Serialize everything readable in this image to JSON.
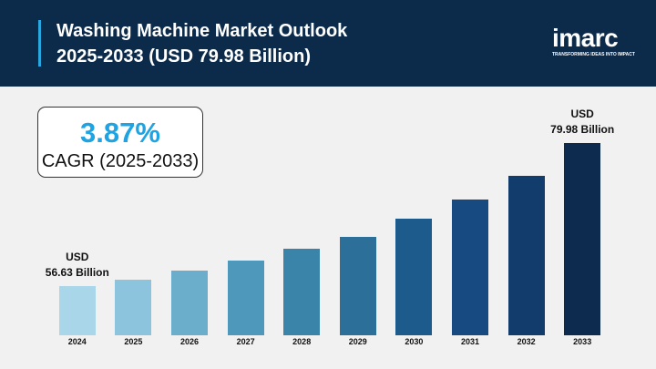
{
  "header": {
    "title": "Washing Machine Market Outlook\n2025-2033 (USD 79.98 Billion)",
    "logo": "imarc",
    "tagline": "TRANSFORMING IDEAS INTO IMPACT"
  },
  "kpi": {
    "value": "3.87%",
    "label": "CAGR (2025-2033)"
  },
  "chart_data": {
    "type": "bar",
    "categories": [
      "2024",
      "2025",
      "2026",
      "2027",
      "2028",
      "2029",
      "2030",
      "2031",
      "2032",
      "2033"
    ],
    "values": [
      56.63,
      57.67,
      59.16,
      60.8,
      62.73,
      64.66,
      67.64,
      70.76,
      74.63,
      79.98
    ],
    "value_labels": [
      "USD\n56.63 Billion",
      null,
      null,
      null,
      null,
      null,
      null,
      null,
      null,
      "USD\n79.98 Billion"
    ],
    "colors": [
      "#a9d6e9",
      "#8cc4dd",
      "#6aaecb",
      "#4e98bc",
      "#3a84a9",
      "#2c6f98",
      "#1d5b8d",
      "#164a80",
      "#113c6b",
      "#0d2b4e"
    ],
    "ylim": [
      48.6,
      82
    ]
  }
}
